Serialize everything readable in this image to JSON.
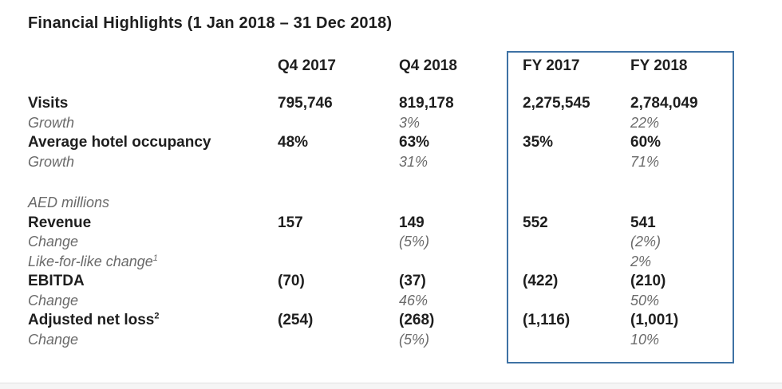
{
  "title": "Financial Highlights (1 Jan 2018 – 31 Dec 2018)",
  "colors": {
    "highlight_box_border": "#3e72a4",
    "primary_text": "#1e1e1e",
    "secondary_text": "#6a6a6a"
  },
  "table": {
    "columns": [
      "Q4 2017",
      "Q4 2018",
      "FY 2017",
      "FY 2018"
    ],
    "highlighted_columns": [
      "FY 2017",
      "FY 2018"
    ],
    "rows": [
      {
        "label": "Visits",
        "sup": "",
        "emphasis": "bold",
        "values": [
          "795,746",
          "819,178",
          "2,275,545",
          "2,784,049"
        ]
      },
      {
        "label": "Growth",
        "sup": "",
        "emphasis": "italic",
        "values": [
          "",
          "3%",
          "",
          "22%"
        ]
      },
      {
        "label": "Average hotel occupancy",
        "sup": "",
        "emphasis": "bold",
        "values": [
          "48%",
          "63%",
          "35%",
          "60%"
        ]
      },
      {
        "label": "Growth",
        "sup": "",
        "emphasis": "italic",
        "values": [
          "",
          "31%",
          "",
          "71%"
        ]
      },
      {
        "label": "",
        "sup": "",
        "emphasis": "spacer",
        "values": [
          "",
          "",
          "",
          ""
        ]
      },
      {
        "label": "AED millions",
        "sup": "",
        "emphasis": "italic",
        "values": [
          "",
          "",
          "",
          ""
        ]
      },
      {
        "label": "Revenue",
        "sup": "",
        "emphasis": "bold",
        "values": [
          "157",
          "149",
          "552",
          "541"
        ]
      },
      {
        "label": "Change",
        "sup": "",
        "emphasis": "italic",
        "values": [
          "",
          "(5%)",
          "",
          "(2%)"
        ]
      },
      {
        "label": "Like-for-like change",
        "sup": "1",
        "emphasis": "italic",
        "values": [
          "",
          "",
          "",
          "2%"
        ]
      },
      {
        "label": "EBITDA",
        "sup": "",
        "emphasis": "bold",
        "values": [
          "(70)",
          "(37)",
          "(422)",
          "(210)"
        ]
      },
      {
        "label": "Change",
        "sup": "",
        "emphasis": "italic",
        "values": [
          "",
          "46%",
          "",
          "50%"
        ]
      },
      {
        "label": "Adjusted net loss",
        "sup": "2",
        "emphasis": "bold",
        "values": [
          "(254)",
          "(268)",
          "(1,116)",
          "(1,001)"
        ]
      },
      {
        "label": "Change",
        "sup": "",
        "emphasis": "italic",
        "values": [
          "",
          "(5%)",
          "",
          "10%"
        ]
      }
    ]
  }
}
